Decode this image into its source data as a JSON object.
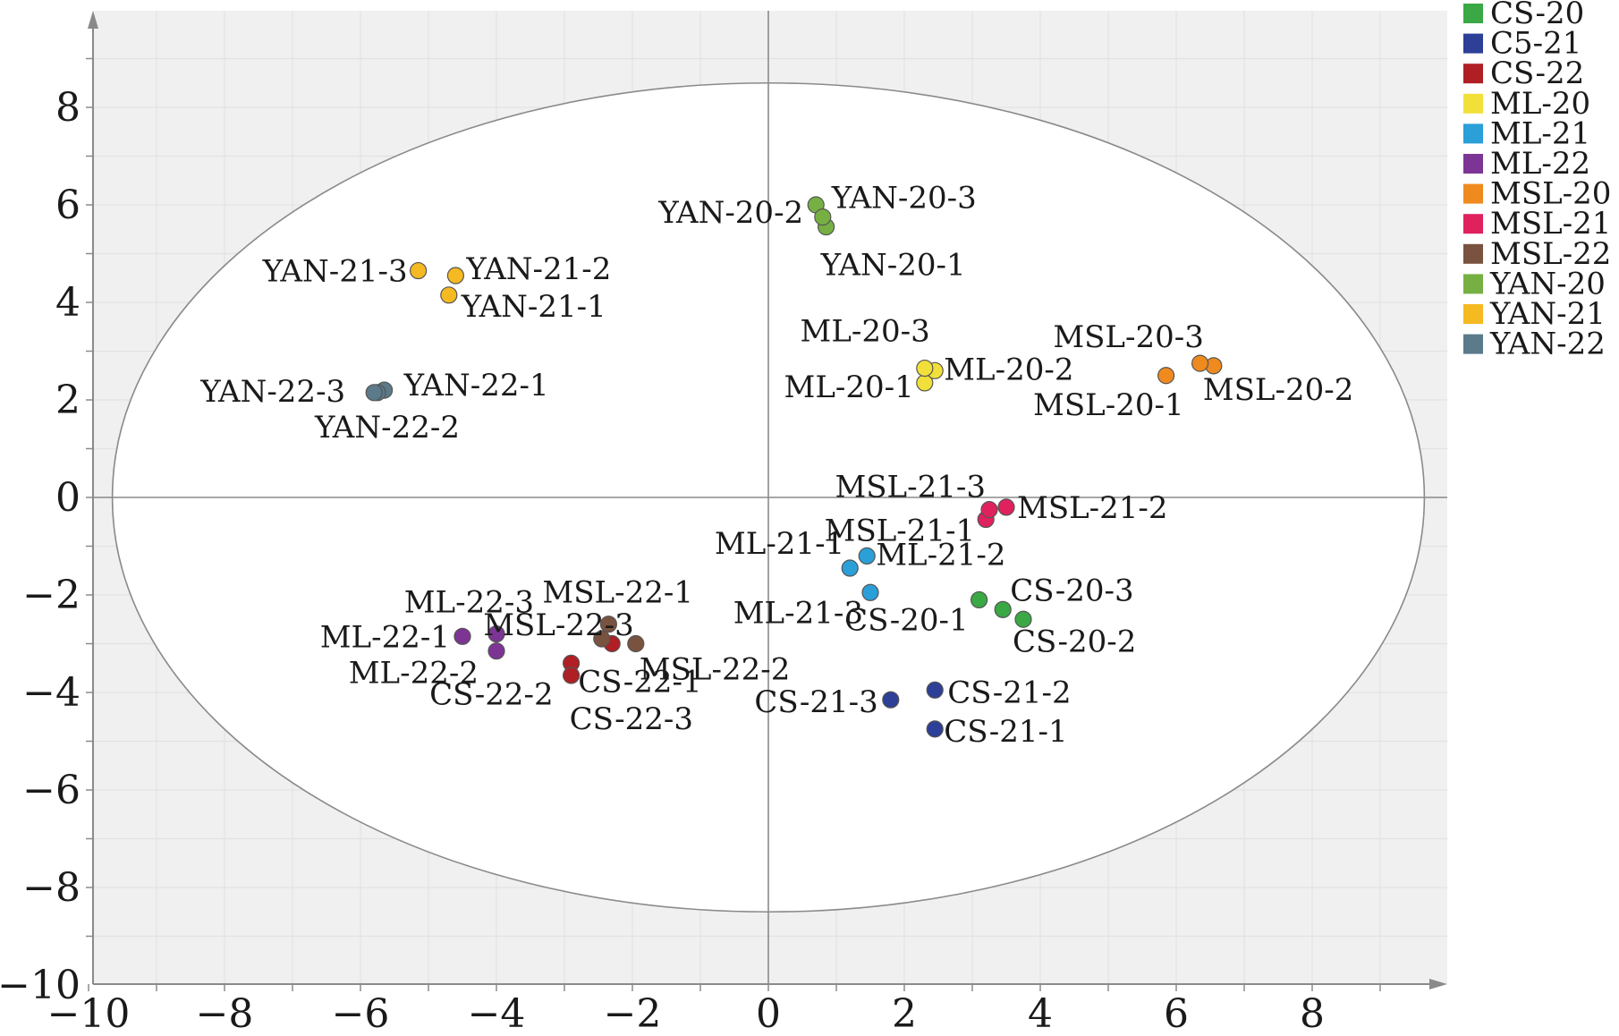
{
  "chart_data": {
    "type": "scatter",
    "xlim": [
      -10,
      10
    ],
    "ylim": [
      -10,
      10
    ],
    "x_ticks": [
      "−10",
      "−8",
      "−6",
      "−4",
      "−2",
      "0",
      "2",
      "4",
      "6",
      "8"
    ],
    "y_ticks": [
      "−10",
      "−8",
      "−6",
      "−4",
      "−2",
      "0",
      "2",
      "4",
      "6",
      "8"
    ],
    "grid": true,
    "confidence_ellipse": {
      "rx": 9.65,
      "ry": 8.5
    },
    "legend_position": "right",
    "legend": [
      {
        "name": "CS-20",
        "color": "#3aa845"
      },
      {
        "name": "C5-21",
        "color": "#2d3f97"
      },
      {
        "name": "CS-22",
        "color": "#b01f24"
      },
      {
        "name": "ML-20",
        "color": "#f2e03a"
      },
      {
        "name": "ML-21",
        "color": "#2a9fd8"
      },
      {
        "name": "ML-22",
        "color": "#7d3595"
      },
      {
        "name": "MSL-20",
        "color": "#ef8a1e"
      },
      {
        "name": "MSL-21",
        "color": "#e0215e"
      },
      {
        "name": "MSL-22",
        "color": "#7a5240"
      },
      {
        "name": "YAN-20",
        "color": "#76b043"
      },
      {
        "name": "YAN-21",
        "color": "#f5b921"
      },
      {
        "name": "YAN-22",
        "color": "#5b7a8a"
      }
    ],
    "points": [
      {
        "label": "CS-20-1",
        "group": "CS-20",
        "x": 3.1,
        "y": -2.1
      },
      {
        "label": "CS-20-2",
        "group": "CS-20",
        "x": 3.75,
        "y": -2.5
      },
      {
        "label": "CS-20-3",
        "group": "CS-20",
        "x": 3.45,
        "y": -2.3
      },
      {
        "label": "CS-21-1",
        "group": "C5-21",
        "x": 2.45,
        "y": -4.75
      },
      {
        "label": "CS-21-2",
        "group": "C5-21",
        "x": 2.45,
        "y": -3.95
      },
      {
        "label": "CS-21-3",
        "group": "C5-21",
        "x": 1.8,
        "y": -4.15
      },
      {
        "label": "CS-22-1",
        "group": "CS-22",
        "x": -2.3,
        "y": -3.0
      },
      {
        "label": "CS-22-2",
        "group": "CS-22",
        "x": -2.9,
        "y": -3.4
      },
      {
        "label": "CS-22-3",
        "group": "CS-22",
        "x": -2.9,
        "y": -3.65
      },
      {
        "label": "ML-20-1",
        "group": "ML-20",
        "x": 2.3,
        "y": 2.35
      },
      {
        "label": "ML-20-2",
        "group": "ML-20",
        "x": 2.45,
        "y": 2.6
      },
      {
        "label": "ML-20-3",
        "group": "ML-20",
        "x": 2.3,
        "y": 2.65
      },
      {
        "label": "ML-21-1",
        "group": "ML-21",
        "x": 1.2,
        "y": -1.45
      },
      {
        "label": "ML-21-2",
        "group": "ML-21",
        "x": 1.45,
        "y": -1.2
      },
      {
        "label": "ML-21-3",
        "group": "ML-21",
        "x": 1.5,
        "y": -1.95
      },
      {
        "label": "ML-22-1",
        "group": "ML-22",
        "x": -4.5,
        "y": -2.85
      },
      {
        "label": "ML-22-2",
        "group": "ML-22",
        "x": -4.0,
        "y": -3.15
      },
      {
        "label": "ML-22-3",
        "group": "ML-22",
        "x": -4.0,
        "y": -2.8
      },
      {
        "label": "MSL-20-1",
        "group": "MSL-20",
        "x": 5.85,
        "y": 2.5
      },
      {
        "label": "MSL-20-2",
        "group": "MSL-20",
        "x": 6.55,
        "y": 2.7
      },
      {
        "label": "MSL-20-3",
        "group": "MSL-20",
        "x": 6.35,
        "y": 2.75
      },
      {
        "label": "MSL-21-1",
        "group": "MSL-21",
        "x": 3.2,
        "y": -0.45
      },
      {
        "label": "MSL-21-2",
        "group": "MSL-21",
        "x": 3.5,
        "y": -0.2
      },
      {
        "label": "MSL-21-3",
        "group": "MSL-21",
        "x": 3.25,
        "y": -0.25
      },
      {
        "label": "MSL-22-1",
        "group": "MSL-22",
        "x": -2.35,
        "y": -2.6
      },
      {
        "label": "MSL-22-2",
        "group": "MSL-22",
        "x": -1.95,
        "y": -3.0
      },
      {
        "label": "MSL-22-3",
        "group": "MSL-22",
        "x": -2.45,
        "y": -2.9
      },
      {
        "label": "YAN-20-1",
        "group": "YAN-20",
        "x": 0.85,
        "y": 5.55
      },
      {
        "label": "YAN-20-2",
        "group": "YAN-20",
        "x": 0.7,
        "y": 6.0
      },
      {
        "label": "YAN-20-3",
        "group": "YAN-20",
        "x": 0.8,
        "y": 5.75
      },
      {
        "label": "YAN-21-1",
        "group": "YAN-21",
        "x": -4.7,
        "y": 4.15
      },
      {
        "label": "YAN-21-2",
        "group": "YAN-21",
        "x": -4.6,
        "y": 4.55
      },
      {
        "label": "YAN-21-3",
        "group": "YAN-21",
        "x": -5.15,
        "y": 4.65
      },
      {
        "label": "YAN-22-1",
        "group": "YAN-22",
        "x": -5.65,
        "y": 2.2
      },
      {
        "label": "YAN-22-2",
        "group": "YAN-22",
        "x": -5.75,
        "y": 2.15
      },
      {
        "label": "YAN-22-3",
        "group": "YAN-22",
        "x": -5.8,
        "y": 2.15
      }
    ]
  }
}
